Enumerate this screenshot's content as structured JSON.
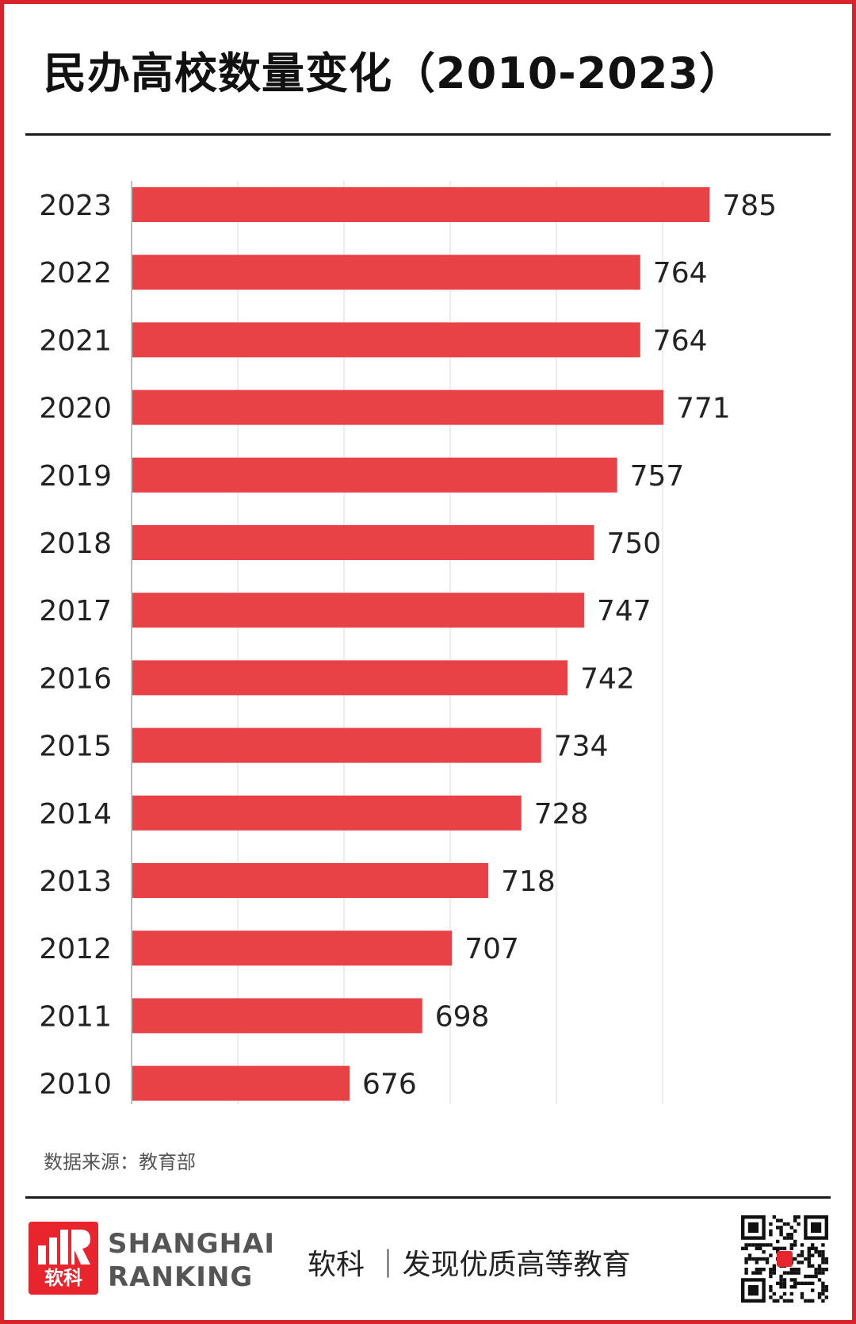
{
  "colors": {
    "bar": "#e84146",
    "frame": "#d8232a",
    "grid": "#e6e6e6",
    "text": "#222222"
  },
  "chart_data": {
    "type": "bar",
    "orientation": "horizontal",
    "title": "民办高校数量变化（2010-2023）",
    "categories": [
      "2023",
      "2022",
      "2021",
      "2020",
      "2019",
      "2018",
      "2017",
      "2016",
      "2015",
      "2014",
      "2013",
      "2012",
      "2011",
      "2010"
    ],
    "values": [
      785,
      764,
      764,
      771,
      757,
      750,
      747,
      742,
      734,
      728,
      718,
      707,
      698,
      676
    ],
    "data_labels": [
      "785",
      "764",
      "764",
      "771",
      "757",
      "750",
      "747",
      "742",
      "734",
      "728",
      "718",
      "707",
      "698",
      "676"
    ],
    "xlim": [
      610,
      795
    ],
    "grid": true,
    "legend": "none"
  },
  "source": "数据来源：教育部",
  "footer": {
    "logo_cn": "软科",
    "brand_line1": "SHANGHAI",
    "brand_line2": "RANKING",
    "slogan": "软科 ｜发现优质高等教育"
  },
  "icons": {
    "logo": "shanghai-ranking-logo-icon",
    "qr": "qr-code-icon"
  }
}
